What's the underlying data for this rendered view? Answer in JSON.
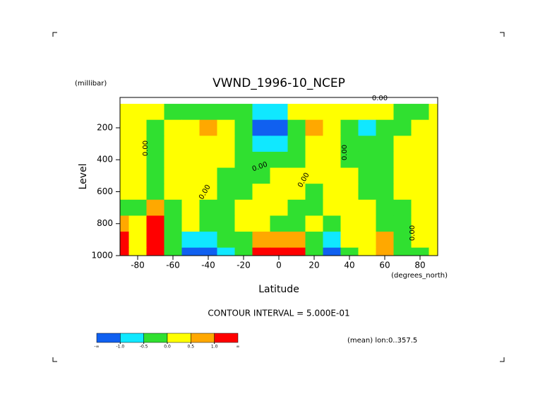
{
  "chart_data": {
    "type": "contour",
    "title": "VWND_1996-10_NCEP",
    "y_units": "(millibar)",
    "y_label": "Level",
    "x_label": "Latitude",
    "x_units": "(degrees_north)",
    "subtitle": "CONTOUR INTERVAL = 5.000E-01",
    "note": "(mean) lon:0..357.5",
    "xlim": [
      -90,
      90
    ],
    "ylim": [
      1000,
      10
    ],
    "xticks": [
      -80,
      -60,
      -40,
      -20,
      0,
      20,
      40,
      60,
      80
    ],
    "yticks": [
      200,
      400,
      600,
      800,
      1000
    ],
    "x": [
      -90,
      -80,
      -70,
      -60,
      -50,
      -40,
      -30,
      -20,
      -10,
      0,
      10,
      20,
      30,
      40,
      50,
      60,
      70,
      80,
      90
    ],
    "y": [
      100,
      200,
      300,
      400,
      500,
      600,
      700,
      800,
      900,
      1000
    ],
    "z": [
      [
        0.2,
        0.2,
        0.2,
        -0.2,
        -0.2,
        -0.2,
        -0.2,
        -0.2,
        -0.7,
        -0.7,
        0.2,
        0.2,
        0.2,
        0.2,
        0.2,
        0.2,
        -0.2,
        -0.2,
        0.2
      ],
      [
        0.2,
        0.2,
        -0.2,
        0.2,
        0.2,
        0.7,
        0.2,
        -0.2,
        -1.2,
        -1.2,
        -0.2,
        0.7,
        0.2,
        -0.2,
        -0.7,
        -0.2,
        -0.2,
        0.2,
        0.2
      ],
      [
        0.2,
        0.2,
        -0.2,
        0.2,
        0.2,
        0.2,
        0.2,
        -0.2,
        -0.7,
        -0.7,
        -0.2,
        0.2,
        0.2,
        -0.2,
        -0.2,
        -0.2,
        0.2,
        0.2,
        0.2
      ],
      [
        0.2,
        0.2,
        -0.2,
        0.2,
        0.2,
        0.2,
        0.2,
        -0.2,
        -0.2,
        -0.2,
        -0.2,
        0.2,
        0.2,
        -0.2,
        -0.2,
        -0.2,
        0.2,
        0.2,
        0.2
      ],
      [
        0.2,
        0.2,
        -0.2,
        0.2,
        0.2,
        0.2,
        -0.2,
        -0.2,
        -0.2,
        0.2,
        0.2,
        0.2,
        0.2,
        0.2,
        -0.2,
        -0.2,
        0.2,
        0.2,
        0.2
      ],
      [
        0.2,
        0.2,
        -0.2,
        0.2,
        0.2,
        0.2,
        -0.2,
        -0.2,
        0.2,
        0.2,
        0.2,
        -0.2,
        0.2,
        0.2,
        -0.2,
        -0.2,
        0.2,
        0.2,
        0.2
      ],
      [
        -0.2,
        -0.2,
        0.7,
        -0.2,
        0.2,
        -0.2,
        -0.2,
        0.2,
        0.2,
        0.2,
        -0.2,
        -0.2,
        0.2,
        0.2,
        0.2,
        -0.2,
        -0.2,
        0.2,
        0.2
      ],
      [
        0.7,
        0.2,
        1.2,
        -0.2,
        0.2,
        -0.2,
        -0.2,
        0.2,
        0.2,
        -0.2,
        -0.2,
        0.2,
        -0.2,
        0.2,
        0.2,
        -0.2,
        -0.2,
        0.2,
        0.2
      ],
      [
        1.2,
        0.2,
        1.2,
        -0.2,
        -0.7,
        -0.7,
        -0.2,
        -0.2,
        0.7,
        0.7,
        0.7,
        -0.2,
        -0.7,
        0.2,
        0.2,
        0.7,
        -0.2,
        0.2,
        0.2
      ],
      [
        1.2,
        0.2,
        1.2,
        -0.2,
        -1.2,
        -1.2,
        -0.7,
        -0.2,
        1.2,
        1.2,
        1.2,
        -0.2,
        -1.2,
        -0.2,
        0.2,
        0.7,
        -0.2,
        -0.2,
        0.2
      ]
    ],
    "levels": [
      {
        "value": -1,
        "label": "-1.0"
      },
      {
        "value": -0.5,
        "label": "-0.5"
      },
      {
        "value": 0,
        "label": "0.0"
      },
      {
        "value": 0.5,
        "label": "0.5"
      },
      {
        "value": 1,
        "label": "1.0"
      }
    ],
    "level_ends": [
      "-∞",
      "∞"
    ],
    "colors": [
      "#1060f0",
      "#10e8ff",
      "#30e030",
      "#ffff00",
      "#ffa800",
      "#ff0000"
    ],
    "contour_labels": [
      "0.00",
      "0.00",
      "0.00",
      "0.00",
      "0.00",
      "0.00",
      "0.00"
    ]
  }
}
